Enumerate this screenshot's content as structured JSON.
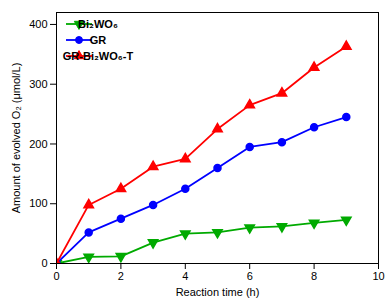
{
  "chart_data": {
    "type": "line",
    "x": [
      0,
      1,
      2,
      3,
      4,
      5,
      6,
      7,
      8,
      9
    ],
    "series": [
      {
        "name": "Bi₂WO₆",
        "color": "#00aa00",
        "marker": "triangle_down",
        "line_style": "solid",
        "values": [
          0,
          11,
          12,
          35,
          50,
          52,
          60,
          62,
          68,
          73
        ]
      },
      {
        "name": "GR",
        "color": "#0000FF",
        "marker": "circle",
        "line_style": "solid",
        "values": [
          0,
          52,
          75,
          98,
          125,
          160,
          195,
          203,
          228,
          245
        ]
      },
      {
        "name": "GR-Bi₂WO₆-T",
        "color": "#FF0000",
        "marker": "triangle_up",
        "line_style": "solid",
        "values": [
          0,
          98,
          125,
          162,
          175,
          225,
          265,
          285,
          328,
          363
        ]
      }
    ],
    "xlabel": "Reaction time (h)",
    "ylabel": "Amount of evolved O₂ (μmol/L)",
    "xlim": [
      0,
      10
    ],
    "ylim": [
      0,
      420
    ],
    "xticks": [
      0,
      2,
      4,
      6,
      8,
      10
    ],
    "yticks": [
      0,
      100,
      200,
      300,
      400
    ],
    "grid": false,
    "legend": "upper left"
  }
}
